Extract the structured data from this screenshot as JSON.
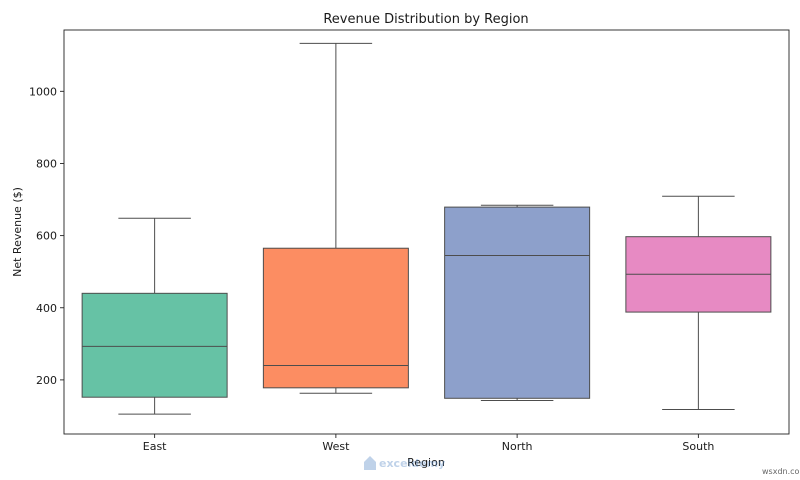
{
  "chart_data": {
    "type": "box",
    "title": "Revenue Distribution by Region",
    "xlabel": "Region",
    "ylabel": "Net Revenue ($)",
    "ylim": [
      50,
      1170
    ],
    "yticks": [
      200,
      400,
      600,
      800,
      1000
    ],
    "grid": false,
    "categories": [
      "East",
      "West",
      "North",
      "South"
    ],
    "boxes": [
      {
        "category": "East",
        "color": "#66c2a5",
        "whisker_low": 105,
        "q1": 152,
        "median": 293,
        "q3": 440,
        "whisker_high": 648
      },
      {
        "category": "West",
        "color": "#fc8d62",
        "whisker_low": 163,
        "q1": 178,
        "median": 240,
        "q3": 565,
        "whisker_high": 1133
      },
      {
        "category": "North",
        "color": "#8da0cb",
        "whisker_low": 143,
        "q1": 149,
        "median": 545,
        "q3": 679,
        "whisker_high": 684
      },
      {
        "category": "South",
        "color": "#e78ac3",
        "whisker_low": 118,
        "q1": 388,
        "median": 493,
        "q3": 597,
        "whisker_high": 709
      }
    ]
  },
  "watermark": {
    "brand": "exceldemy",
    "site": "wsxdn.com"
  }
}
